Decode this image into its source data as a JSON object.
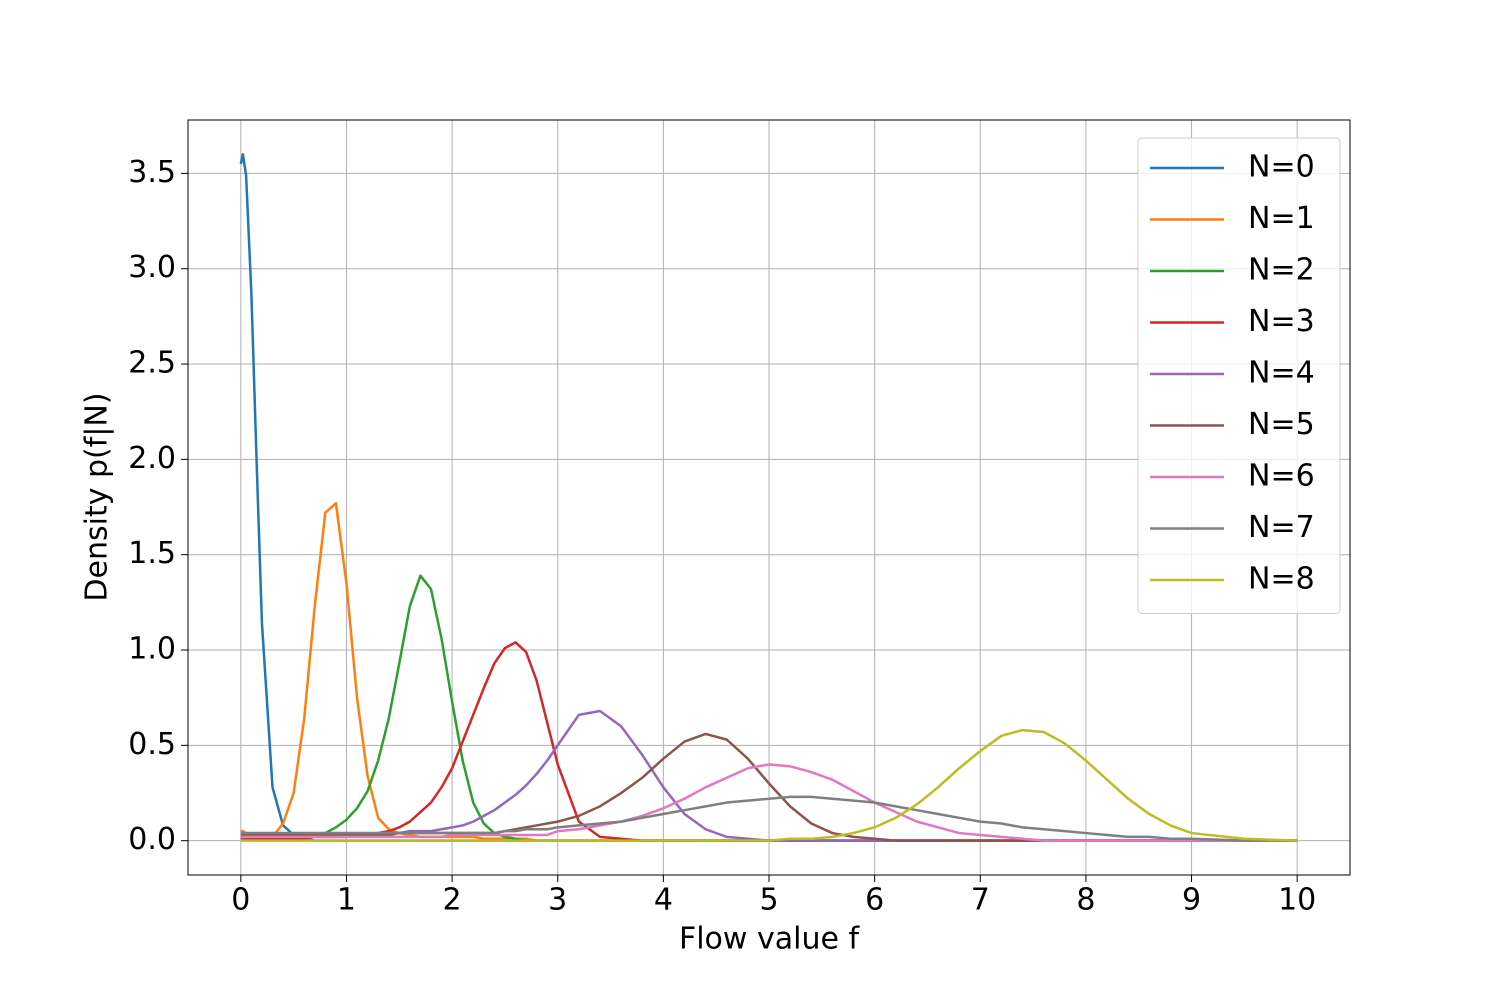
{
  "chart_data": {
    "type": "line",
    "x_label": "Flow value f",
    "y_label": "Density p(f|N)",
    "x": [
      0,
      0.02,
      0.05,
      0.1,
      0.15,
      0.2,
      0.3,
      0.4,
      0.5,
      0.6,
      0.7,
      0.8,
      0.9,
      1.0,
      1.1,
      1.2,
      1.3,
      1.4,
      1.5,
      1.6,
      1.7,
      1.8,
      1.9,
      2.0,
      2.1,
      2.2,
      2.3,
      2.4,
      2.5,
      2.6,
      2.7,
      2.8,
      2.9,
      3.0,
      3.2,
      3.4,
      3.6,
      3.8,
      4.0,
      4.2,
      4.4,
      4.6,
      4.8,
      5.0,
      5.2,
      5.4,
      5.6,
      5.8,
      6.0,
      6.2,
      6.4,
      6.6,
      6.8,
      7.0,
      7.2,
      7.4,
      7.6,
      7.8,
      8.0,
      8.2,
      8.4,
      8.6,
      8.8,
      9.0,
      9.5,
      10
    ],
    "series": [
      {
        "name": "N=0",
        "color": "#1f77b4",
        "values": [
          3.55,
          3.6,
          3.49,
          2.87,
          1.98,
          1.14,
          0.28,
          0.08,
          0.03,
          0.01,
          0,
          0,
          0,
          0,
          0,
          0,
          0,
          0,
          0,
          0,
          0,
          0,
          0,
          0,
          0,
          0,
          0,
          0,
          0,
          0,
          0,
          0,
          0,
          0,
          0,
          0,
          0,
          0,
          0,
          0,
          0,
          0,
          0,
          0,
          0,
          0,
          0,
          0,
          0,
          0,
          0,
          0,
          0,
          0,
          0,
          0,
          0,
          0,
          0,
          0,
          0,
          0,
          0,
          0,
          0,
          0
        ]
      },
      {
        "name": "N=1",
        "color": "#ff7f0e",
        "values": [
          0.05,
          0.05,
          0.04,
          0.03,
          0.02,
          0.02,
          0.02,
          0.09,
          0.25,
          0.64,
          1.23,
          1.72,
          1.77,
          1.35,
          0.75,
          0.34,
          0.12,
          0.06,
          0.04,
          0.03,
          0.02,
          0.02,
          0.02,
          0.02,
          0.02,
          0.02,
          0.01,
          0.01,
          0.01,
          0.01,
          0.01,
          0,
          0,
          0,
          0,
          0,
          0,
          0,
          0,
          0,
          0,
          0,
          0,
          0,
          0,
          0,
          0,
          0,
          0,
          0,
          0,
          0,
          0,
          0,
          0,
          0,
          0,
          0,
          0,
          0,
          0,
          0,
          0,
          0,
          0,
          0
        ]
      },
      {
        "name": "N=2",
        "color": "#2ca02c",
        "values": [
          0.01,
          0.01,
          0.01,
          0.01,
          0.01,
          0.01,
          0.01,
          0.01,
          0.01,
          0.01,
          0.02,
          0.04,
          0.07,
          0.11,
          0.17,
          0.26,
          0.42,
          0.64,
          0.93,
          1.23,
          1.39,
          1.32,
          1.06,
          0.73,
          0.42,
          0.2,
          0.09,
          0.04,
          0.02,
          0.01,
          0,
          0,
          0,
          0,
          0,
          0,
          0,
          0,
          0,
          0,
          0,
          0,
          0,
          0,
          0,
          0,
          0,
          0,
          0,
          0,
          0,
          0,
          0,
          0,
          0,
          0,
          0,
          0,
          0,
          0,
          0,
          0,
          0,
          0,
          0,
          0
        ]
      },
      {
        "name": "N=3",
        "color": "#d62728",
        "values": [
          0.01,
          0.01,
          0.01,
          0.01,
          0.01,
          0.01,
          0.01,
          0.01,
          0.01,
          0.01,
          0.02,
          0.02,
          0.02,
          0.02,
          0.03,
          0.03,
          0.04,
          0.05,
          0.07,
          0.1,
          0.15,
          0.2,
          0.28,
          0.38,
          0.52,
          0.66,
          0.8,
          0.93,
          1.01,
          1.04,
          0.99,
          0.84,
          0.62,
          0.4,
          0.1,
          0.02,
          0.01,
          0,
          0,
          0,
          0,
          0,
          0,
          0,
          0,
          0,
          0,
          0,
          0,
          0,
          0,
          0,
          0,
          0,
          0,
          0,
          0,
          0,
          0,
          0,
          0,
          0,
          0,
          0,
          0,
          0
        ]
      },
      {
        "name": "N=4",
        "color": "#9467bd",
        "values": [
          0.02,
          0.02,
          0.02,
          0.02,
          0.02,
          0.02,
          0.02,
          0.02,
          0.02,
          0.02,
          0.02,
          0.02,
          0.02,
          0.03,
          0.03,
          0.03,
          0.04,
          0.04,
          0.04,
          0.05,
          0.05,
          0.05,
          0.06,
          0.07,
          0.08,
          0.1,
          0.13,
          0.16,
          0.2,
          0.24,
          0.29,
          0.35,
          0.42,
          0.5,
          0.66,
          0.68,
          0.6,
          0.45,
          0.28,
          0.14,
          0.06,
          0.02,
          0.01,
          0,
          0,
          0,
          0,
          0,
          0,
          0,
          0,
          0,
          0,
          0,
          0,
          0,
          0,
          0,
          0,
          0,
          0,
          0,
          0,
          0,
          0,
          0
        ]
      },
      {
        "name": "N=5",
        "color": "#8c564b",
        "values": [
          0.03,
          0.03,
          0.03,
          0.03,
          0.03,
          0.03,
          0.03,
          0.03,
          0.03,
          0.03,
          0.03,
          0.03,
          0.03,
          0.03,
          0.03,
          0.03,
          0.03,
          0.03,
          0.04,
          0.04,
          0.04,
          0.04,
          0.04,
          0.04,
          0.04,
          0.04,
          0.04,
          0.04,
          0.05,
          0.06,
          0.07,
          0.08,
          0.09,
          0.1,
          0.13,
          0.18,
          0.25,
          0.33,
          0.43,
          0.52,
          0.56,
          0.53,
          0.43,
          0.3,
          0.18,
          0.09,
          0.04,
          0.02,
          0.01,
          0,
          0,
          0,
          0,
          0,
          0,
          0,
          0,
          0,
          0,
          0,
          0,
          0,
          0,
          0,
          0,
          0
        ]
      },
      {
        "name": "N=6",
        "color": "#e377c2",
        "values": [
          0.02,
          0.02,
          0.02,
          0.02,
          0.02,
          0.02,
          0.02,
          0.02,
          0.02,
          0.02,
          0.02,
          0.02,
          0.02,
          0.02,
          0.02,
          0.02,
          0.02,
          0.02,
          0.02,
          0.02,
          0.02,
          0.02,
          0.02,
          0.03,
          0.03,
          0.03,
          0.03,
          0.03,
          0.03,
          0.03,
          0.03,
          0.03,
          0.03,
          0.05,
          0.06,
          0.08,
          0.1,
          0.13,
          0.17,
          0.22,
          0.28,
          0.33,
          0.38,
          0.4,
          0.39,
          0.36,
          0.32,
          0.26,
          0.2,
          0.15,
          0.1,
          0.07,
          0.04,
          0.03,
          0.02,
          0.01,
          0,
          0,
          0,
          0,
          0,
          0,
          0,
          0,
          0,
          0
        ]
      },
      {
        "name": "N=7",
        "color": "#7f7f7f",
        "values": [
          0.04,
          0.04,
          0.04,
          0.04,
          0.04,
          0.04,
          0.04,
          0.04,
          0.04,
          0.04,
          0.04,
          0.04,
          0.04,
          0.04,
          0.04,
          0.04,
          0.04,
          0.04,
          0.04,
          0.04,
          0.04,
          0.04,
          0.04,
          0.04,
          0.04,
          0.04,
          0.04,
          0.04,
          0.05,
          0.05,
          0.06,
          0.06,
          0.06,
          0.07,
          0.08,
          0.09,
          0.1,
          0.12,
          0.14,
          0.16,
          0.18,
          0.2,
          0.21,
          0.22,
          0.23,
          0.23,
          0.22,
          0.21,
          0.2,
          0.18,
          0.16,
          0.14,
          0.12,
          0.1,
          0.09,
          0.07,
          0.06,
          0.05,
          0.04,
          0.03,
          0.02,
          0.02,
          0.01,
          0.01,
          0,
          0
        ]
      },
      {
        "name": "N=8",
        "color": "#bcbd22",
        "values": [
          0,
          0,
          0,
          0,
          0,
          0,
          0,
          0,
          0,
          0,
          0,
          0,
          0,
          0,
          0,
          0,
          0,
          0,
          0,
          0,
          0,
          0,
          0,
          0,
          0,
          0,
          0,
          0,
          0,
          0,
          0,
          0,
          0,
          0,
          0,
          0,
          0,
          0,
          0,
          0,
          0,
          0,
          0,
          0,
          0.01,
          0.01,
          0.02,
          0.04,
          0.07,
          0.12,
          0.19,
          0.28,
          0.38,
          0.47,
          0.55,
          0.58,
          0.57,
          0.51,
          0.42,
          0.32,
          0.22,
          0.14,
          0.08,
          0.04,
          0.01,
          0
        ]
      }
    ],
    "xlim": [
      -0.5,
      10.5
    ],
    "ylim": [
      -0.18,
      3.78
    ],
    "xticks": [
      0,
      1,
      2,
      3,
      4,
      5,
      6,
      7,
      8,
      9,
      10
    ],
    "yticks": [
      {
        "value": 0,
        "label": "0.0"
      },
      0.5,
      {
        "value": 1,
        "label": "1.0"
      },
      1.5,
      {
        "value": 2,
        "label": "2.0"
      },
      2.5,
      {
        "value": 3,
        "label": "3.0"
      },
      3.5
    ],
    "grid": true,
    "legend": "upper right"
  }
}
